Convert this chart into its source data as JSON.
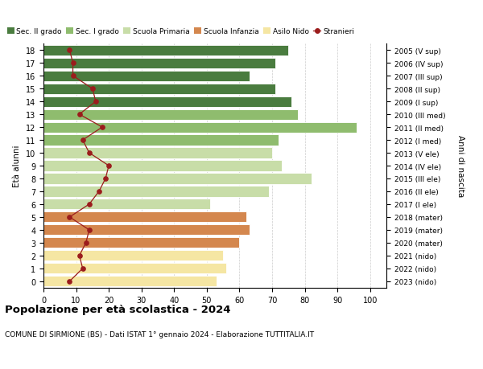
{
  "ages": [
    0,
    1,
    2,
    3,
    4,
    5,
    6,
    7,
    8,
    9,
    10,
    11,
    12,
    13,
    14,
    15,
    16,
    17,
    18
  ],
  "labels_right": [
    "2023 (nido)",
    "2022 (nido)",
    "2021 (nido)",
    "2020 (mater)",
    "2019 (mater)",
    "2018 (mater)",
    "2017 (I ele)",
    "2016 (II ele)",
    "2015 (III ele)",
    "2014 (IV ele)",
    "2013 (V ele)",
    "2012 (I med)",
    "2011 (II med)",
    "2010 (III med)",
    "2009 (I sup)",
    "2008 (II sup)",
    "2007 (III sup)",
    "2006 (IV sup)",
    "2005 (V sup)"
  ],
  "bar_values": [
    53,
    56,
    55,
    60,
    63,
    62,
    51,
    69,
    82,
    73,
    70,
    72,
    96,
    78,
    76,
    71,
    63,
    71,
    75
  ],
  "bar_colors": [
    "#f5e6a3",
    "#f5e6a3",
    "#f5e6a3",
    "#d4874e",
    "#d4874e",
    "#d4874e",
    "#c8dda8",
    "#c8dda8",
    "#c8dda8",
    "#c8dda8",
    "#c8dda8",
    "#8fbc6e",
    "#8fbc6e",
    "#8fbc6e",
    "#4a7c3f",
    "#4a7c3f",
    "#4a7c3f",
    "#4a7c3f",
    "#4a7c3f"
  ],
  "stranieri_values": [
    8,
    12,
    11,
    13,
    14,
    8,
    14,
    17,
    19,
    20,
    14,
    12,
    18,
    11,
    16,
    15,
    9,
    9,
    8
  ],
  "title": "Popolazione per età scolastica - 2024",
  "subtitle": "COMUNE DI SIRMIONE (BS) - Dati ISTAT 1° gennaio 2024 - Elaborazione TUTTITALIA.IT",
  "ylabel": "Età alunni",
  "ylabel_right": "Anni di nascita",
  "xlim": [
    0,
    105
  ],
  "xticks": [
    0,
    10,
    20,
    30,
    40,
    50,
    60,
    70,
    80,
    90,
    100
  ],
  "legend_labels": [
    "Sec. II grado",
    "Sec. I grado",
    "Scuola Primaria",
    "Scuola Infanzia",
    "Asilo Nido",
    "Stranieri"
  ],
  "legend_colors": [
    "#4a7c3f",
    "#8fbc6e",
    "#c8dda8",
    "#d4874e",
    "#f5e6a3",
    "#b22222"
  ],
  "background_color": "#ffffff",
  "bar_height": 0.82,
  "grid_color": "#cccccc",
  "stranieri_line_color": "#9b1c1c",
  "stranieri_marker_color": "#9b1c1c"
}
